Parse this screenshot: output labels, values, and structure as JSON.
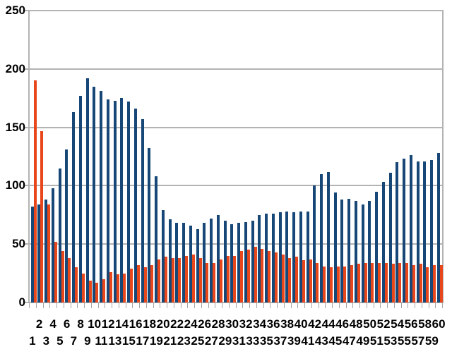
{
  "chart_data": {
    "type": "bar",
    "categories": [
      1,
      2,
      3,
      4,
      5,
      6,
      7,
      8,
      9,
      10,
      11,
      12,
      13,
      14,
      15,
      16,
      17,
      18,
      19,
      20,
      21,
      22,
      23,
      24,
      25,
      26,
      27,
      28,
      29,
      30,
      31,
      32,
      33,
      34,
      35,
      36,
      37,
      38,
      39,
      40,
      41,
      42,
      43,
      44,
      45,
      46,
      47,
      48,
      49,
      50,
      51,
      52,
      53,
      54,
      55,
      56,
      57,
      58,
      59,
      60
    ],
    "series": [
      {
        "name": "dark-blue-series",
        "color": "#164776",
        "values": [
          82,
          84,
          88,
          98,
          115,
          131,
          163,
          177,
          192,
          185,
          181,
          174,
          173,
          175,
          172,
          166,
          157,
          132,
          108,
          79,
          71,
          68,
          68,
          66,
          63,
          68,
          72,
          75,
          70,
          67,
          68,
          69,
          70,
          75,
          76,
          76,
          77,
          78,
          77,
          78,
          78,
          100,
          110,
          112,
          94,
          88,
          89,
          87,
          84,
          87,
          95,
          103,
          111,
          120,
          123,
          126,
          121,
          121,
          122,
          128
        ]
      },
      {
        "name": "orange-red-series",
        "color": "#e8461b",
        "values": [
          190,
          147,
          84,
          52,
          44,
          38,
          30,
          25,
          19,
          17,
          20,
          26,
          24,
          25,
          29,
          32,
          30,
          32,
          37,
          39,
          38,
          38,
          40,
          41,
          38,
          34,
          34,
          37,
          40,
          40,
          44,
          45,
          48,
          46,
          44,
          43,
          41,
          38,
          39,
          36,
          37,
          34,
          31,
          30,
          31,
          31,
          32,
          33,
          34,
          34,
          34,
          34,
          33,
          34,
          34,
          32,
          33,
          30,
          32,
          32
        ]
      }
    ],
    "ylim": [
      0,
      250
    ],
    "yticks": [
      0,
      50,
      100,
      150,
      200,
      250
    ],
    "grid": true,
    "gridline_color": "#b3b3b3",
    "legend": "none",
    "x_label_layout": "staggered-two-rows"
  }
}
